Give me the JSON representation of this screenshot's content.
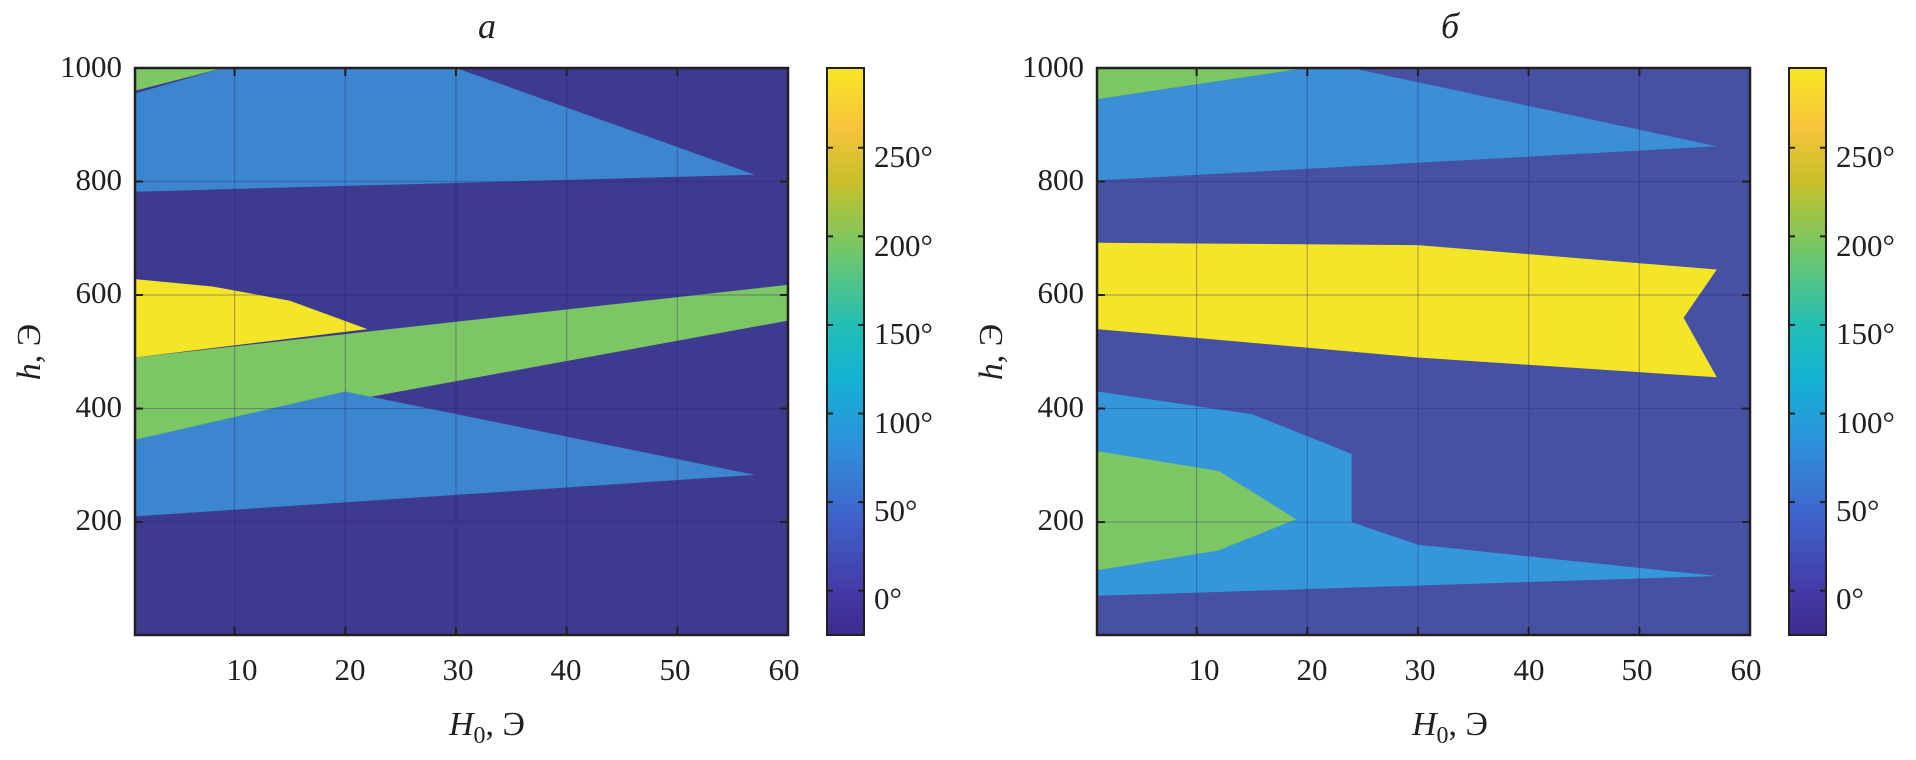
{
  "chart_data": [
    {
      "type": "heatmap",
      "title": "а",
      "xlabel_main": "H",
      "xlabel_sub": "0",
      "xlabel_unit": ", Э",
      "ylabel_main": "h",
      "ylabel_unit": ", Э",
      "xlim": [
        1,
        60
      ],
      "ylim": [
        1,
        1000
      ],
      "xticks": [
        "10",
        "20",
        "30",
        "40",
        "50",
        "60"
      ],
      "yticks": [
        "200",
        "400",
        "600",
        "800",
        "1000"
      ],
      "grid": true,
      "colorbar": {
        "range": [
          -25,
          295
        ],
        "ticks": [
          "0°",
          "50°",
          "100°",
          "150°",
          "200°",
          "250°"
        ]
      },
      "background_value": 0,
      "regions": [
        {
          "level": 185,
          "color": "#7cc663",
          "boundary": [
            [
              1,
              1000
            ],
            [
              9,
              1000
            ],
            [
              1,
              960
            ]
          ]
        },
        {
          "level": 75,
          "color": "#3c86cf",
          "boundary": [
            [
              1,
              955
            ],
            [
              9,
              1000
            ],
            [
              30,
              1000
            ],
            [
              57,
              812
            ],
            [
              1,
              782
            ]
          ]
        },
        {
          "level": 265,
          "color": "#f4e526",
          "boundary": [
            [
              1,
              628
            ],
            [
              8,
              615
            ],
            [
              15,
              590
            ],
            [
              22,
              540
            ],
            [
              1,
              490
            ]
          ]
        },
        {
          "level": 185,
          "color": "#7cc663",
          "boundary": [
            [
              1,
              490
            ],
            [
              60,
              618
            ],
            [
              60,
              555
            ],
            [
              1,
              345
            ]
          ]
        },
        {
          "level": 75,
          "color": "#3c86cf",
          "boundary": [
            [
              1,
              345
            ],
            [
              20,
              430
            ],
            [
              57,
              283
            ],
            [
              1,
              210
            ]
          ]
        }
      ]
    },
    {
      "type": "heatmap",
      "title": "б",
      "xlabel_main": "H",
      "xlabel_sub": "0",
      "xlabel_unit": ", Э",
      "ylabel_main": "h",
      "ylabel_unit": ", Э",
      "xlim": [
        1,
        60
      ],
      "ylim": [
        1,
        1000
      ],
      "xticks": [
        "10",
        "20",
        "30",
        "40",
        "50",
        "60"
      ],
      "yticks": [
        "200",
        "400",
        "600",
        "800",
        "1000"
      ],
      "grid": true,
      "colorbar": {
        "range": [
          -25,
          295
        ],
        "ticks": [
          "0°",
          "50°",
          "100°",
          "150°",
          "200°",
          "250°"
        ]
      },
      "background_value": 5,
      "regions": [
        {
          "level": 185,
          "color": "#7cc663",
          "boundary": [
            [
              1,
              1000
            ],
            [
              20,
              1000
            ],
            [
              1,
              945
            ]
          ]
        },
        {
          "level": 80,
          "color": "#3a8fd6",
          "boundary": [
            [
              1,
              945
            ],
            [
              20,
              1000
            ],
            [
              24,
              1000
            ],
            [
              57,
              862
            ],
            [
              1,
              802
            ]
          ]
        },
        {
          "level": 265,
          "color": "#f4e526",
          "boundary": [
            [
              1,
              692
            ],
            [
              30,
              688
            ],
            [
              57,
              645
            ],
            [
              54,
              560
            ],
            [
              57,
              455
            ],
            [
              30,
              490
            ],
            [
              1,
              540
            ]
          ]
        },
        {
          "level": 85,
          "color": "#3597db",
          "boundary": [
            [
              1,
              430
            ],
            [
              15,
              390
            ],
            [
              24,
              320
            ],
            [
              24,
              200
            ],
            [
              30,
              160
            ],
            [
              57,
              105
            ],
            [
              1,
              70
            ]
          ]
        },
        {
          "level": 185,
          "color": "#7cc663",
          "boundary": [
            [
              1,
              325
            ],
            [
              12,
              290
            ],
            [
              19,
              205
            ],
            [
              12,
              150
            ],
            [
              1,
              115
            ]
          ]
        }
      ]
    }
  ]
}
